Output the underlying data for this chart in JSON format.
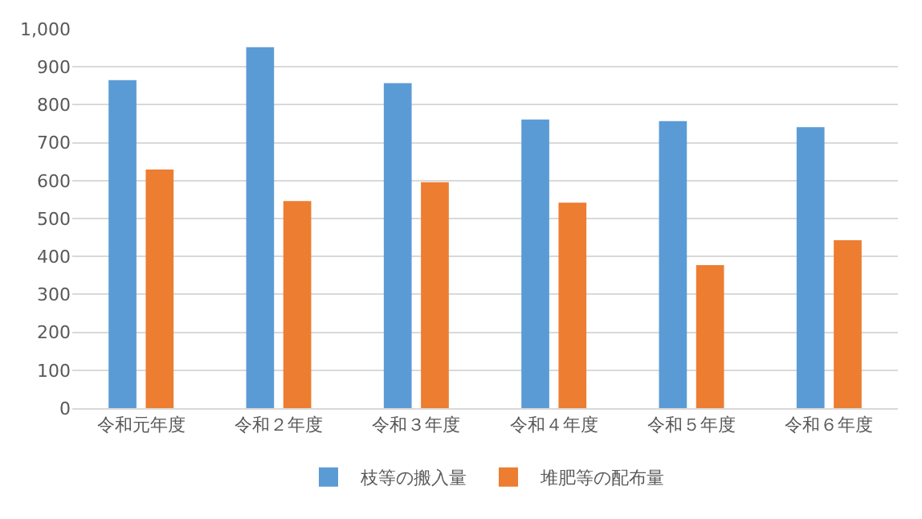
{
  "chart_data": {
    "type": "bar",
    "categories": [
      "令和元年度",
      "令和２年度",
      "令和３年度",
      "令和４年度",
      "令和５年度",
      "令和６年度"
    ],
    "series": [
      {
        "name": "枝等の搬入量",
        "color": "#5b9bd5",
        "values": [
          865,
          952,
          857,
          761,
          757,
          741
        ]
      },
      {
        "name": "堆肥等の配布量",
        "color": "#ed7d31",
        "values": [
          629,
          546,
          596,
          542,
          377,
          443
        ]
      }
    ],
    "ylim": [
      0,
      1000
    ],
    "yticks": [
      0,
      100,
      200,
      300,
      400,
      500,
      600,
      700,
      800,
      900,
      {
        "value": 1000,
        "label": "1,000"
      }
    ],
    "grid": "y",
    "legend": "bottom"
  }
}
